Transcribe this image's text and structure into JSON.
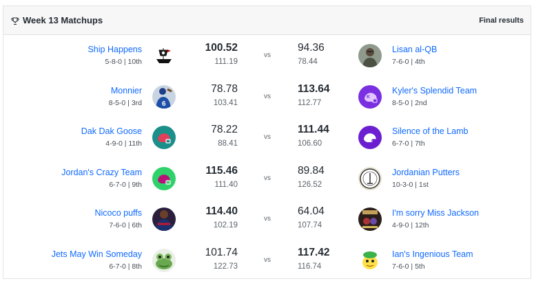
{
  "header": {
    "icon": "trophy-icon",
    "title": "Week 13 Matchups",
    "status": "Final results"
  },
  "vs_label": "vs",
  "matchups": [
    {
      "left": {
        "name": "Ship Happens",
        "record": "5-8-0 | 10th",
        "score": "100.52",
        "projected": "111.19",
        "winner": true,
        "avatar": "pirate-ship-avatar"
      },
      "right": {
        "name": "Lisan al-QB",
        "record": "7-6-0 | 4th",
        "score": "94.36",
        "projected": "78.44",
        "winner": false,
        "avatar": "desert-warrior-avatar"
      }
    },
    {
      "left": {
        "name": "Monnier",
        "record": "8-5-0 | 3rd",
        "score": "78.78",
        "projected": "103.41",
        "winner": false,
        "avatar": "quarterback-photo-avatar"
      },
      "right": {
        "name": "Kyler's Splendid Team",
        "record": "8-5-0 | 2nd",
        "score": "113.64",
        "projected": "112.77",
        "winner": true,
        "avatar": "purple-helmet-avatar"
      }
    },
    {
      "left": {
        "name": "Dak Dak Goose",
        "record": "4-9-0 | 11th",
        "score": "78.22",
        "projected": "88.41",
        "winner": false,
        "avatar": "teal-helmet-avatar"
      },
      "right": {
        "name": "Silence of the Lamb",
        "record": "6-7-0 | 7th",
        "score": "111.44",
        "projected": "106.60",
        "winner": true,
        "avatar": "violet-helmet-avatar"
      }
    },
    {
      "left": {
        "name": "Jordan's Crazy Team",
        "record": "6-7-0 | 9th",
        "score": "115.46",
        "projected": "111.40",
        "winner": true,
        "avatar": "green-helmet-avatar"
      },
      "right": {
        "name": "Jordanian Putters",
        "record": "10-3-0 | 1st",
        "score": "89.84",
        "projected": "126.52",
        "winner": false,
        "avatar": "putters-badge-avatar"
      }
    },
    {
      "left": {
        "name": "Nicoco puffs",
        "record": "7-6-0 | 6th",
        "score": "114.40",
        "projected": "102.19",
        "winner": true,
        "avatar": "player-photo-avatar"
      },
      "right": {
        "name": "I'm sorry Miss Jackson",
        "record": "4-9-0 | 12th",
        "score": "64.04",
        "projected": "107.74",
        "winner": false,
        "avatar": "poster-avatar"
      }
    },
    {
      "left": {
        "name": "Jets May Win Someday",
        "record": "6-7-0 | 8th",
        "score": "101.74",
        "projected": "122.73",
        "winner": false,
        "avatar": "frog-avatar"
      },
      "right": {
        "name": "Ian's Ingenious Team",
        "record": "7-6-0 | 5th",
        "score": "117.42",
        "projected": "116.74",
        "winner": true,
        "avatar": "cartoon-face-avatar"
      }
    }
  ],
  "colors": {
    "link": "#0f69ff",
    "header_bg": "#f7f7f8",
    "border": "#e3e3e6"
  }
}
